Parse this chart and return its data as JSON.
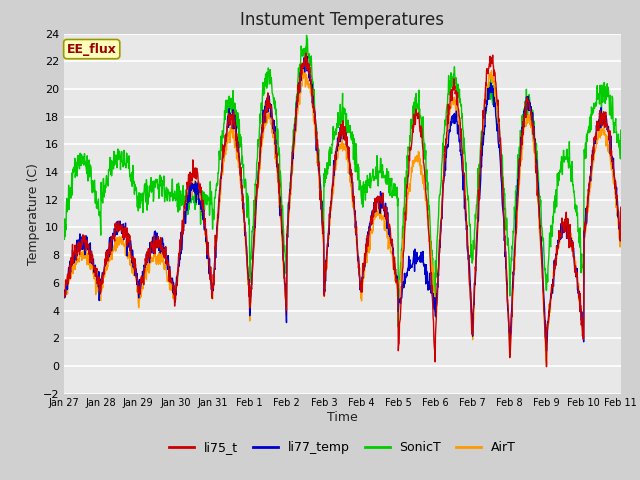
{
  "title": "Instument Temperatures",
  "xlabel": "Time",
  "ylabel": "Temperature (C)",
  "ylim": [
    -2,
    24
  ],
  "yticks": [
    -2,
    0,
    2,
    4,
    6,
    8,
    10,
    12,
    14,
    16,
    18,
    20,
    22,
    24
  ],
  "annotation_text": "EE_flux",
  "annotation_bg": "#ffffbb",
  "annotation_border": "#999900",
  "fig_bg": "#d0d0d0",
  "plot_bg": "#e8e8e8",
  "series": {
    "li75_t": {
      "color": "#cc0000",
      "lw": 1.0
    },
    "li77_temp": {
      "color": "#0000cc",
      "lw": 1.0
    },
    "SonicT": {
      "color": "#00cc00",
      "lw": 1.0
    },
    "AirT": {
      "color": "#ff9900",
      "lw": 1.0
    }
  },
  "legend_labels": [
    "li75_t",
    "li77_temp",
    "SonicT",
    "AirT"
  ],
  "legend_colors": [
    "#cc0000",
    "#0000cc",
    "#00cc00",
    "#ff9900"
  ],
  "xtick_labels": [
    "Jan 27",
    "Jan 28",
    "Jan 29",
    "Jan 30",
    "Jan 31",
    "Feb 1",
    "Feb 2",
    "Feb 3",
    "Feb 4",
    "Feb 5",
    "Feb 6",
    "Feb 7",
    "Feb 8",
    "Feb 9",
    "Feb 10",
    "Feb 11"
  ],
  "n_points": 1440
}
